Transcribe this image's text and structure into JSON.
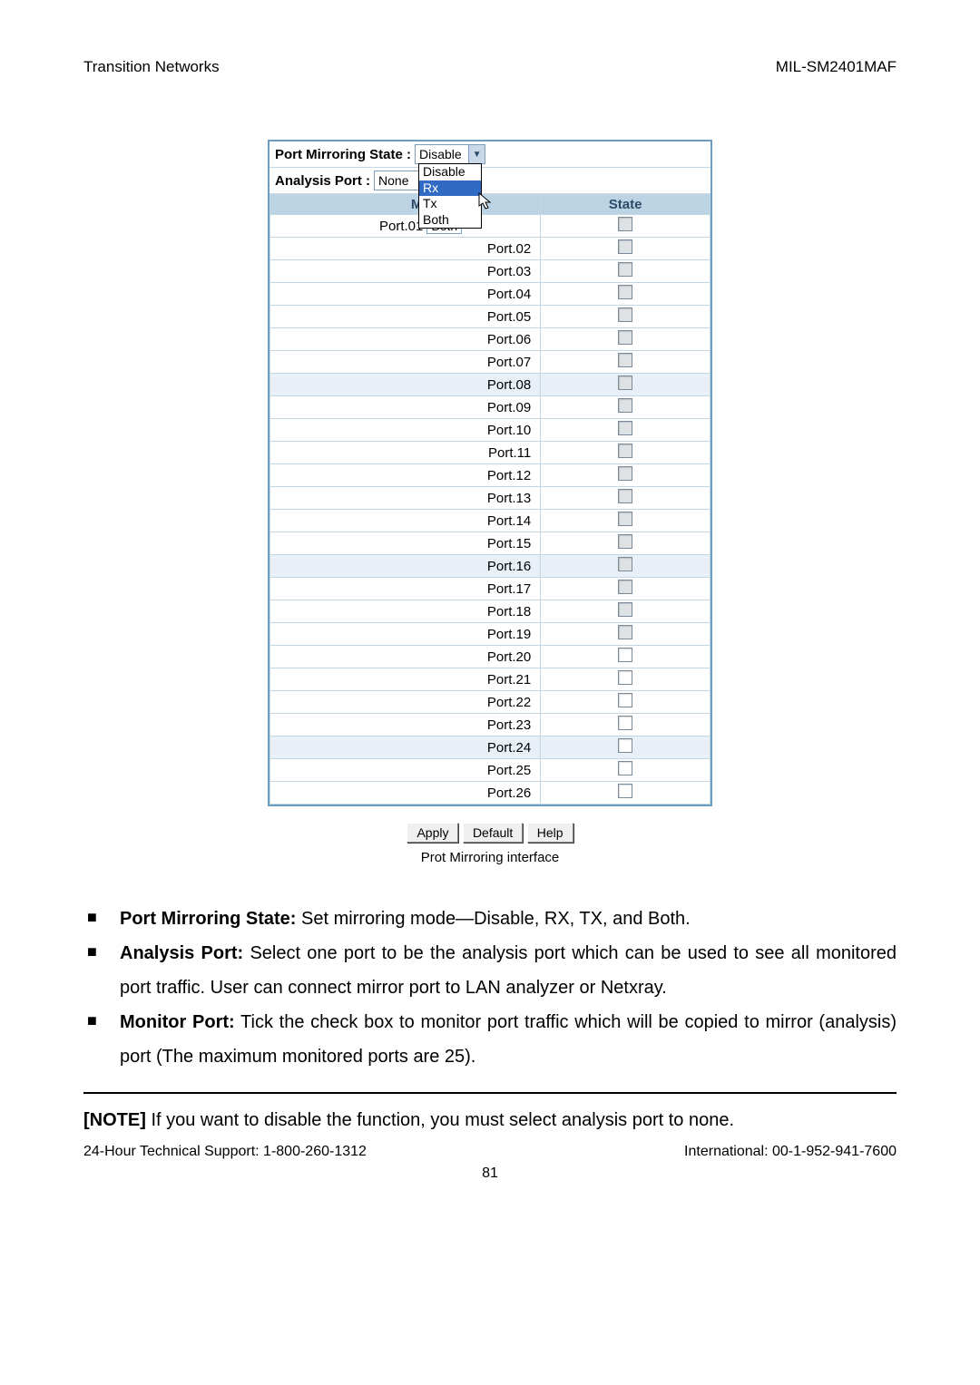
{
  "header": {
    "left": "Transition Networks",
    "right": "MIL-SM2401MAF"
  },
  "panel": {
    "mirroringStateLabel": "Port Mirroring State :",
    "mirroringStateValue": "Disable",
    "analysisPortLabel": "Analysis Port :",
    "analysisPortValue": "None",
    "dropdown": {
      "options": [
        "Disable",
        "Rx",
        "Tx",
        "Both"
      ],
      "highlighted": "Rx"
    },
    "tableHeaders": {
      "monitor": "Monitor Po",
      "state": "State"
    },
    "rows": [
      {
        "name": "Port.01",
        "extra": "Both",
        "shaded": true,
        "alt": false
      },
      {
        "name": "Port.02",
        "shaded": true,
        "alt": false
      },
      {
        "name": "Port.03",
        "shaded": true,
        "alt": false
      },
      {
        "name": "Port.04",
        "shaded": true,
        "alt": false
      },
      {
        "name": "Port.05",
        "shaded": true,
        "alt": false
      },
      {
        "name": "Port.06",
        "shaded": true,
        "alt": false
      },
      {
        "name": "Port.07",
        "shaded": true,
        "alt": false
      },
      {
        "name": "Port.08",
        "shaded": true,
        "alt": true
      },
      {
        "name": "Port.09",
        "shaded": true,
        "alt": false
      },
      {
        "name": "Port.10",
        "shaded": true,
        "alt": false
      },
      {
        "name": "Port.11",
        "shaded": true,
        "alt": false
      },
      {
        "name": "Port.12",
        "shaded": true,
        "alt": false
      },
      {
        "name": "Port.13",
        "shaded": true,
        "alt": false
      },
      {
        "name": "Port.14",
        "shaded": true,
        "alt": false
      },
      {
        "name": "Port.15",
        "shaded": true,
        "alt": false
      },
      {
        "name": "Port.16",
        "shaded": true,
        "alt": true
      },
      {
        "name": "Port.17",
        "shaded": true,
        "alt": false
      },
      {
        "name": "Port.18",
        "shaded": true,
        "alt": false
      },
      {
        "name": "Port.19",
        "shaded": true,
        "alt": false
      },
      {
        "name": "Port.20",
        "shaded": false,
        "alt": false
      },
      {
        "name": "Port.21",
        "shaded": false,
        "alt": false
      },
      {
        "name": "Port.22",
        "shaded": false,
        "alt": false
      },
      {
        "name": "Port.23",
        "shaded": false,
        "alt": false
      },
      {
        "name": "Port.24",
        "shaded": false,
        "alt": true
      },
      {
        "name": "Port.25",
        "shaded": false,
        "alt": false
      },
      {
        "name": "Port.26",
        "shaded": false,
        "alt": false
      }
    ]
  },
  "buttons": {
    "apply": "Apply",
    "default": "Default",
    "help": "Help"
  },
  "caption": "Prot Mirroring interface",
  "bullets": [
    {
      "lead": "Port Mirroring State:",
      "text": " Set mirroring mode—Disable, RX, TX, and Both."
    },
    {
      "lead": "Analysis Port:",
      "text": " Select one port to be the analysis port which can be used to see all monitored port traffic. User can connect mirror port to LAN analyzer or Netxray."
    },
    {
      "lead": "Monitor Port:",
      "text": " Tick the check box to monitor port traffic which will be copied to mirror (analysis) port (The maximum monitored ports are 25)."
    }
  ],
  "note": {
    "tag": "[NOTE]",
    "text": " If you want to disable the function, you must select analysis port to none."
  },
  "footer": {
    "left": "24-Hour Technical Support: 1-800-260-1312",
    "right": "International: 00-1-952-941-7600",
    "page": "81"
  }
}
